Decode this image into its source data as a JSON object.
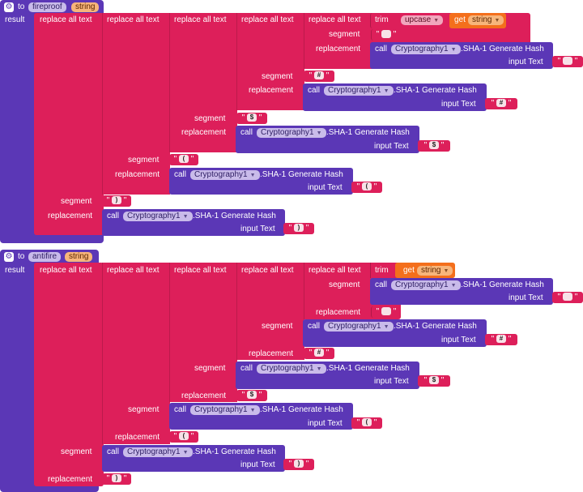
{
  "procedures": [
    {
      "keyword": "to",
      "name": "fireproof",
      "param": "string",
      "result_label": "result",
      "replace_all_text": "replace all text",
      "trim": "trim",
      "upcase": "upcase",
      "get": "get",
      "get_var": "string",
      "segment": "segment",
      "replacement": "replacement",
      "call": "call",
      "component": "Cryptography1",
      "method": ".SHA-1 Generate Hash",
      "input_text": "input Text",
      "quote": "\"",
      "symbols": [
        "",
        "#",
        "$",
        "(",
        ")"
      ]
    },
    {
      "keyword": "to",
      "name": "antifire",
      "param": "string",
      "result_label": "result",
      "replace_all_text": "replace all text",
      "trim": "trim",
      "get": "get",
      "get_var": "string",
      "segment": "segment",
      "replacement": "replacement",
      "call": "call",
      "component": "Cryptography1",
      "method": ".SHA-1 Generate Hash",
      "input_text": "input Text",
      "quote": "\"",
      "symbols": [
        "",
        "#",
        "$",
        "(",
        ")"
      ]
    }
  ],
  "colors": {
    "procedure": "#5b37b6",
    "text": "#dd1f5a",
    "variable": "#f46f1c"
  }
}
